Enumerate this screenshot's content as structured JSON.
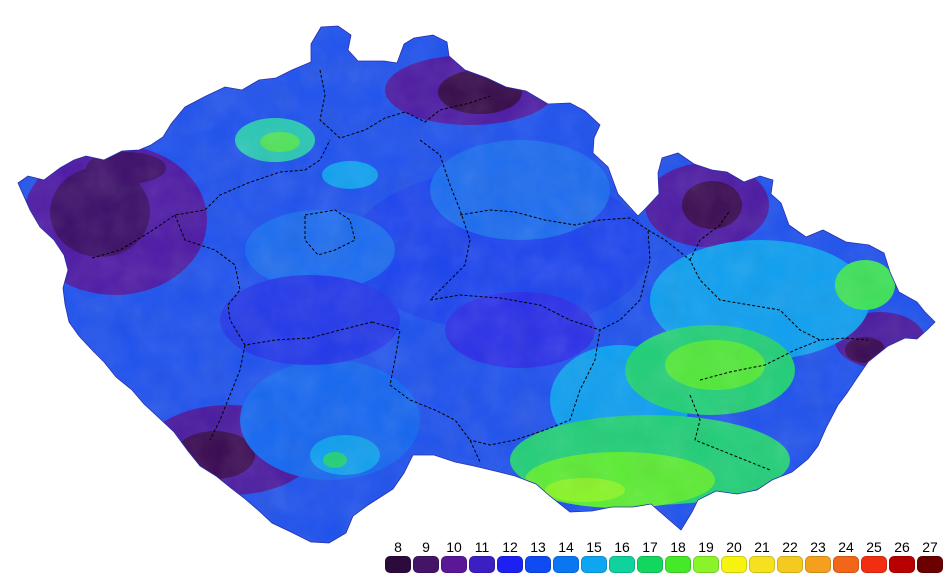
{
  "map": {
    "colors": {
      "very_cold": "#3a0a52",
      "cold": "#4a1b95",
      "cool": "#2b3fe6",
      "mid": "#1f62f3",
      "mild": "#0f8cf0",
      "warm": "#16d36e",
      "warmer": "#55f038",
      "border": "#000000"
    }
  },
  "legend": {
    "items": [
      {
        "label": "8",
        "color": "#2c0a3c"
      },
      {
        "label": "9",
        "color": "#441466"
      },
      {
        "label": "10",
        "color": "#5a1797"
      },
      {
        "label": "11",
        "color": "#3b1fc2"
      },
      {
        "label": "12",
        "color": "#1d20f2"
      },
      {
        "label": "13",
        "color": "#0f4bf3"
      },
      {
        "label": "14",
        "color": "#0b76f3"
      },
      {
        "label": "15",
        "color": "#0ea6f1"
      },
      {
        "label": "16",
        "color": "#10d29d"
      },
      {
        "label": "17",
        "color": "#12d65e"
      },
      {
        "label": "18",
        "color": "#46e82a"
      },
      {
        "label": "19",
        "color": "#8af42a"
      },
      {
        "label": "20",
        "color": "#f6f30f"
      },
      {
        "label": "21",
        "color": "#f5e11f"
      },
      {
        "label": "22",
        "color": "#f5c91f"
      },
      {
        "label": "23",
        "color": "#f59f1f"
      },
      {
        "label": "24",
        "color": "#f2661a"
      },
      {
        "label": "25",
        "color": "#f12f10"
      },
      {
        "label": "26",
        "color": "#b90000"
      },
      {
        "label": "27",
        "color": "#6a0000"
      }
    ]
  }
}
